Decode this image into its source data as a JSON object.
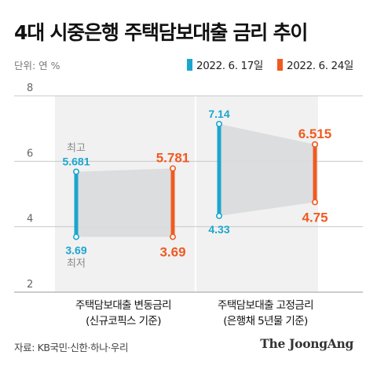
{
  "header": {
    "title": "4대 시중은행 주택담보대출 금리 추이",
    "unit": "단위: 연 %"
  },
  "legend": [
    {
      "label": "2022. 6. 17일",
      "color": "#1aa6cf"
    },
    {
      "label": "2022. 6. 24일",
      "color": "#f05a22"
    }
  ],
  "footer": {
    "source": "자료: KB국민·신한·하나·우리",
    "brand": "The JoongAng"
  },
  "chart_data": {
    "type": "range-bar",
    "title": "4대 시중은행 주택담보대출 금리 추이",
    "ylabel": "단위: 연 %",
    "ylim": [
      2,
      8
    ],
    "yticks": [
      2,
      4,
      6,
      8
    ],
    "categories": [
      {
        "line1": "주택담보대출 변동금리",
        "line2": "(신규코픽스 기준)"
      },
      {
        "line1": "주택담보대출 고정금리",
        "line2": "(은행채 5년물 기준)"
      }
    ],
    "series": [
      {
        "name": "2022. 6. 17일",
        "color": "#1aa6cf",
        "ranges": [
          {
            "low": 3.69,
            "high": 5.681,
            "low_label": "3.69",
            "high_label": "5.681"
          },
          {
            "low": 4.33,
            "high": 7.14,
            "low_label": "4.33",
            "high_label": "7.14"
          }
        ]
      },
      {
        "name": "2022. 6. 24일",
        "color": "#f05a22",
        "ranges": [
          {
            "low": 3.69,
            "high": 5.781,
            "low_label": "3.69",
            "high_label": "5.781"
          },
          {
            "low": 4.75,
            "high": 6.515,
            "low_label": "4.75",
            "high_label": "6.515"
          }
        ]
      }
    ],
    "annotations": {
      "high": "최고",
      "low": "최저"
    },
    "grid": true,
    "legend_position": "top-right"
  }
}
